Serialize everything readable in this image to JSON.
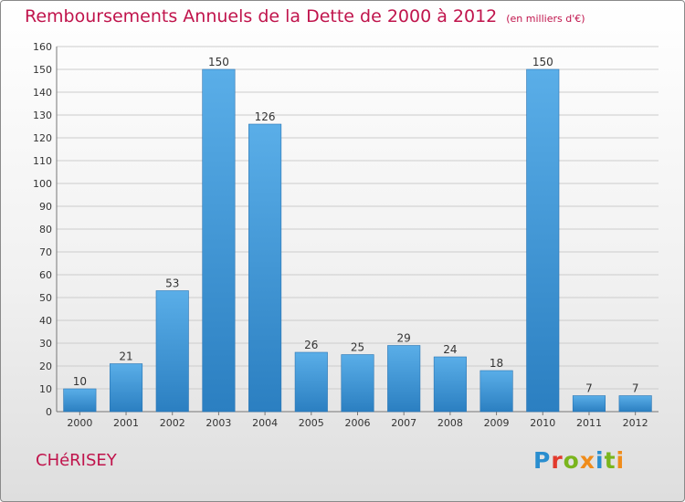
{
  "title": "Remboursements Annuels de la Dette de 2000 à 2012",
  "unit": "(en milliers d'€)",
  "commune": "CHéRISEY",
  "logo": {
    "text": "Proxiti",
    "colors": [
      "#2a8ecf",
      "#e23a2c",
      "#7ab51d",
      "#f08c1a",
      "#2a8ecf",
      "#7ab51d",
      "#f08c1a"
    ]
  },
  "colors": {
    "title": "#c0144c",
    "bar_light": "#5aaee8",
    "bar_dark": "#2b7fc1",
    "grid": "#cccccc"
  },
  "chart_data": {
    "type": "bar",
    "categories": [
      "2000",
      "2001",
      "2002",
      "2003",
      "2004",
      "2005",
      "2006",
      "2007",
      "2008",
      "2009",
      "2010",
      "2011",
      "2012"
    ],
    "values": [
      10,
      21,
      53,
      150,
      126,
      26,
      25,
      29,
      24,
      18,
      150,
      7,
      7
    ],
    "ylim": [
      0,
      160
    ],
    "yticks": [
      0,
      10,
      20,
      30,
      40,
      50,
      60,
      70,
      80,
      90,
      100,
      110,
      120,
      130,
      140,
      150,
      160
    ],
    "grid": true,
    "data_labels": true
  }
}
